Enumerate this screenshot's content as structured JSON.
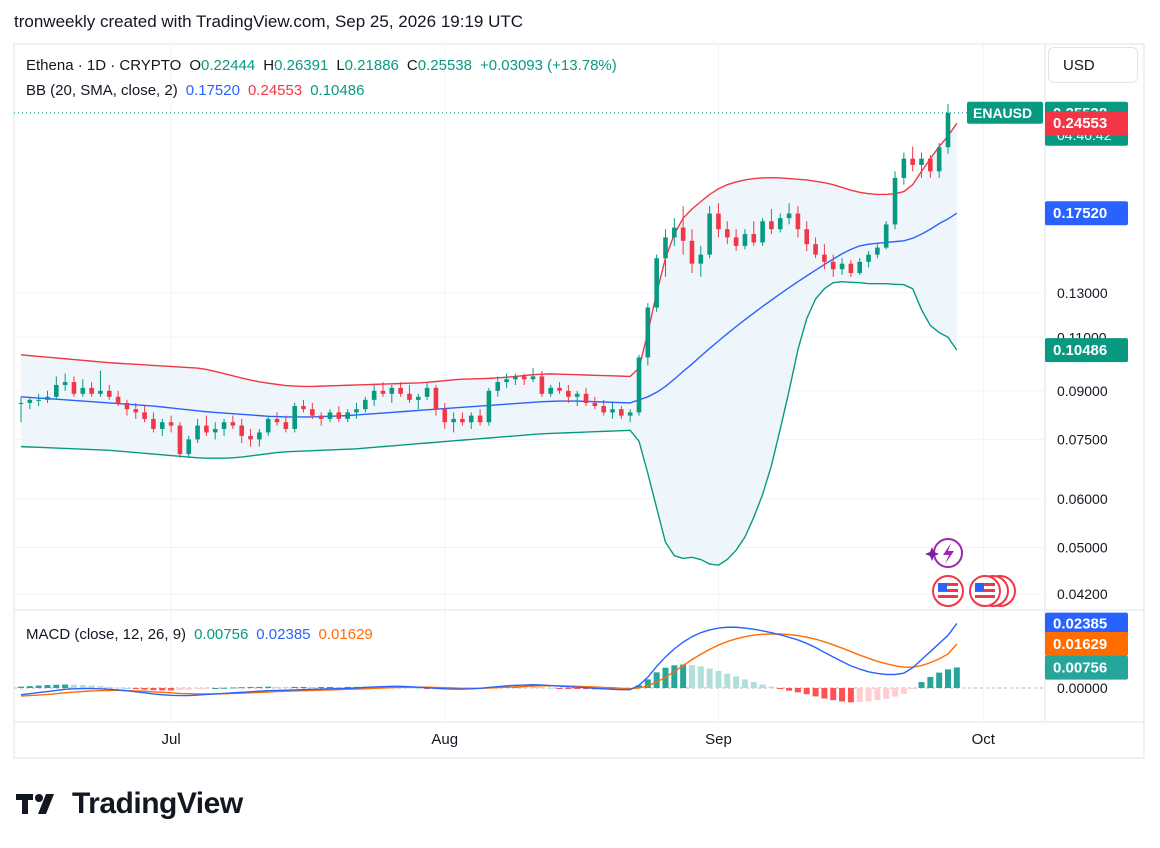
{
  "header": {
    "caption": "tronweekly created with TradingView.com, Sep 25, 2026 19:19 UTC"
  },
  "currency_button": {
    "label": "USD"
  },
  "branding": {
    "name": "TradingView"
  },
  "colors": {
    "up": "#089981",
    "down": "#f23645",
    "bb_upper": "#f23645",
    "bb_basis": "#2962ff",
    "bb_lower": "#089981",
    "bb_fill": "#eef6fc",
    "macd_line": "#2962ff",
    "signal_line": "#ff6d00",
    "hist_up_strong": "#26a69a",
    "hist_up_weak": "#b2dfdb",
    "hist_down_strong": "#ff5252",
    "hist_down_weak": "#ffcdd2",
    "grid": "#f0f3fa",
    "text": "#131722",
    "muted": "#787b86"
  },
  "legend": {
    "symbol": "Ethena · 1D · CRYPTO",
    "o_label": "O",
    "o_value": "0.22444",
    "h_label": "H",
    "h_value": "0.26391",
    "l_label": "L",
    "l_value": "0.21886",
    "c_label": "C",
    "c_value": "0.25538",
    "change": "+0.03093 (+13.78%)",
    "bb_title": "BB (20, SMA, close, 2)",
    "bb_basis": "0.17520",
    "bb_upper": "0.24553",
    "bb_lower": "0.10486",
    "macd_title": "MACD (close, 12, 26, 9)",
    "macd_hist": "0.00756",
    "macd_line": "0.02385",
    "macd_signal": "0.01629"
  },
  "chart_data": {
    "type": "candlestick",
    "symbol": "ENAUSD",
    "scale": "log",
    "price_axis_ticks": [
      "0.13000",
      "0.11000",
      "0.09000",
      "0.07500",
      "0.06000",
      "0.05000",
      "0.04200"
    ],
    "macd_axis_ticks": [
      "0.00000"
    ],
    "time_axis_labels": [
      "Jul",
      "Aug",
      "Sep",
      "Oct"
    ],
    "current_price": {
      "label": "ENAUSD",
      "value": "0.25538",
      "countdown": "04:40:42"
    },
    "bb_tags": {
      "upper": "0.24553",
      "basis": "0.17520",
      "lower": "0.10486"
    },
    "macd_tags": {
      "macd": "0.02385",
      "signal": "0.01629",
      "histogram": "0.00756"
    },
    "candles": [
      [
        0.086,
        0.088,
        0.08,
        0.086
      ],
      [
        0.086,
        0.088,
        0.084,
        0.087
      ],
      [
        0.087,
        0.089,
        0.085,
        0.087
      ],
      [
        0.087,
        0.09,
        0.086,
        0.088
      ],
      [
        0.088,
        0.095,
        0.087,
        0.092
      ],
      [
        0.092,
        0.096,
        0.09,
        0.093
      ],
      [
        0.093,
        0.095,
        0.088,
        0.089
      ],
      [
        0.089,
        0.094,
        0.088,
        0.091
      ],
      [
        0.091,
        0.093,
        0.088,
        0.089
      ],
      [
        0.089,
        0.097,
        0.088,
        0.09
      ],
      [
        0.09,
        0.092,
        0.087,
        0.088
      ],
      [
        0.088,
        0.09,
        0.085,
        0.086
      ],
      [
        0.086,
        0.087,
        0.082,
        0.084
      ],
      [
        0.084,
        0.086,
        0.081,
        0.083
      ],
      [
        0.083,
        0.085,
        0.08,
        0.081
      ],
      [
        0.081,
        0.083,
        0.077,
        0.078
      ],
      [
        0.078,
        0.081,
        0.076,
        0.08
      ],
      [
        0.08,
        0.082,
        0.077,
        0.079
      ],
      [
        0.079,
        0.08,
        0.07,
        0.071
      ],
      [
        0.071,
        0.076,
        0.07,
        0.075
      ],
      [
        0.075,
        0.081,
        0.074,
        0.079
      ],
      [
        0.079,
        0.082,
        0.076,
        0.077
      ],
      [
        0.077,
        0.08,
        0.075,
        0.078
      ],
      [
        0.078,
        0.081,
        0.076,
        0.08
      ],
      [
        0.08,
        0.082,
        0.078,
        0.079
      ],
      [
        0.079,
        0.081,
        0.074,
        0.076
      ],
      [
        0.076,
        0.078,
        0.073,
        0.075
      ],
      [
        0.075,
        0.078,
        0.073,
        0.077
      ],
      [
        0.077,
        0.082,
        0.076,
        0.081
      ],
      [
        0.081,
        0.083,
        0.079,
        0.08
      ],
      [
        0.08,
        0.082,
        0.077,
        0.078
      ],
      [
        0.078,
        0.086,
        0.077,
        0.085
      ],
      [
        0.085,
        0.087,
        0.083,
        0.084
      ],
      [
        0.084,
        0.086,
        0.081,
        0.082
      ],
      [
        0.082,
        0.083,
        0.079,
        0.081
      ],
      [
        0.081,
        0.084,
        0.08,
        0.083
      ],
      [
        0.083,
        0.085,
        0.08,
        0.081
      ],
      [
        0.081,
        0.084,
        0.08,
        0.083
      ],
      [
        0.083,
        0.086,
        0.081,
        0.084
      ],
      [
        0.084,
        0.088,
        0.083,
        0.087
      ],
      [
        0.087,
        0.092,
        0.085,
        0.09
      ],
      [
        0.09,
        0.093,
        0.088,
        0.089
      ],
      [
        0.089,
        0.092,
        0.086,
        0.091
      ],
      [
        0.091,
        0.093,
        0.088,
        0.089
      ],
      [
        0.089,
        0.092,
        0.086,
        0.087
      ],
      [
        0.087,
        0.089,
        0.084,
        0.088
      ],
      [
        0.088,
        0.093,
        0.087,
        0.091
      ],
      [
        0.091,
        0.092,
        0.082,
        0.084
      ],
      [
        0.084,
        0.086,
        0.078,
        0.08
      ],
      [
        0.08,
        0.083,
        0.077,
        0.081
      ],
      [
        0.081,
        0.083,
        0.079,
        0.08
      ],
      [
        0.08,
        0.083,
        0.078,
        0.082
      ],
      [
        0.082,
        0.084,
        0.079,
        0.08
      ],
      [
        0.08,
        0.091,
        0.079,
        0.09
      ],
      [
        0.09,
        0.095,
        0.088,
        0.093
      ],
      [
        0.093,
        0.096,
        0.091,
        0.094
      ],
      [
        0.094,
        0.096,
        0.092,
        0.095
      ],
      [
        0.095,
        0.096,
        0.092,
        0.094
      ],
      [
        0.094,
        0.098,
        0.093,
        0.095
      ],
      [
        0.095,
        0.097,
        0.088,
        0.089
      ],
      [
        0.089,
        0.092,
        0.088,
        0.091
      ],
      [
        0.091,
        0.093,
        0.089,
        0.09
      ],
      [
        0.09,
        0.092,
        0.086,
        0.088
      ],
      [
        0.088,
        0.09,
        0.085,
        0.089
      ],
      [
        0.089,
        0.091,
        0.085,
        0.086
      ],
      [
        0.086,
        0.088,
        0.084,
        0.085
      ],
      [
        0.085,
        0.087,
        0.082,
        0.083
      ],
      [
        0.083,
        0.086,
        0.081,
        0.084
      ],
      [
        0.084,
        0.085,
        0.081,
        0.082
      ],
      [
        0.082,
        0.084,
        0.08,
        0.083
      ],
      [
        0.083,
        0.103,
        0.082,
        0.102
      ],
      [
        0.102,
        0.125,
        0.099,
        0.123
      ],
      [
        0.123,
        0.15,
        0.121,
        0.148
      ],
      [
        0.148,
        0.165,
        0.138,
        0.16
      ],
      [
        0.16,
        0.172,
        0.155,
        0.166
      ],
      [
        0.166,
        0.18,
        0.15,
        0.158
      ],
      [
        0.158,
        0.165,
        0.14,
        0.145
      ],
      [
        0.145,
        0.155,
        0.138,
        0.15
      ],
      [
        0.15,
        0.18,
        0.148,
        0.175
      ],
      [
        0.175,
        0.182,
        0.16,
        0.165
      ],
      [
        0.165,
        0.17,
        0.156,
        0.16
      ],
      [
        0.16,
        0.165,
        0.152,
        0.155
      ],
      [
        0.155,
        0.165,
        0.153,
        0.162
      ],
      [
        0.162,
        0.17,
        0.155,
        0.157
      ],
      [
        0.157,
        0.172,
        0.155,
        0.17
      ],
      [
        0.17,
        0.178,
        0.162,
        0.165
      ],
      [
        0.165,
        0.175,
        0.163,
        0.172
      ],
      [
        0.172,
        0.182,
        0.168,
        0.175
      ],
      [
        0.175,
        0.18,
        0.16,
        0.165
      ],
      [
        0.165,
        0.17,
        0.152,
        0.156
      ],
      [
        0.156,
        0.16,
        0.148,
        0.15
      ],
      [
        0.15,
        0.156,
        0.142,
        0.146
      ],
      [
        0.146,
        0.15,
        0.138,
        0.142
      ],
      [
        0.142,
        0.148,
        0.139,
        0.145
      ],
      [
        0.145,
        0.147,
        0.138,
        0.14
      ],
      [
        0.14,
        0.148,
        0.139,
        0.146
      ],
      [
        0.146,
        0.152,
        0.143,
        0.15
      ],
      [
        0.15,
        0.156,
        0.148,
        0.154
      ],
      [
        0.154,
        0.17,
        0.153,
        0.168
      ],
      [
        0.168,
        0.205,
        0.165,
        0.2
      ],
      [
        0.2,
        0.22,
        0.195,
        0.215
      ],
      [
        0.215,
        0.225,
        0.205,
        0.21
      ],
      [
        0.21,
        0.22,
        0.2,
        0.215
      ],
      [
        0.215,
        0.218,
        0.2,
        0.205
      ],
      [
        0.205,
        0.228,
        0.2,
        0.2244
      ],
      [
        0.22444,
        0.26391,
        0.21886,
        0.25538
      ]
    ],
    "bollinger": {
      "upper": [
        0.103,
        0.1027,
        0.1024,
        0.1021,
        0.1018,
        0.1015,
        0.1012,
        0.1009,
        0.1006,
        0.1003,
        0.1,
        0.0998,
        0.0996,
        0.0994,
        0.0992,
        0.099,
        0.0988,
        0.0986,
        0.0984,
        0.0982,
        0.098,
        0.0975,
        0.0968,
        0.096,
        0.0952,
        0.0944,
        0.0937,
        0.0931,
        0.0926,
        0.0922,
        0.0918,
        0.0916,
        0.0915,
        0.0915,
        0.0916,
        0.0917,
        0.0918,
        0.0919,
        0.092,
        0.0921,
        0.0922,
        0.0923,
        0.0924,
        0.0925,
        0.0926,
        0.0927,
        0.0929,
        0.0932,
        0.0935,
        0.0938,
        0.094,
        0.0941,
        0.0942,
        0.0943,
        0.0945,
        0.0947,
        0.095,
        0.0953,
        0.0956,
        0.0958,
        0.0959,
        0.0958,
        0.0957,
        0.0956,
        0.0955,
        0.0954,
        0.0953,
        0.0952,
        0.0951,
        0.095,
        0.098,
        0.112,
        0.13,
        0.148,
        0.162,
        0.172,
        0.178,
        0.183,
        0.188,
        0.192,
        0.195,
        0.197,
        0.1985,
        0.1995,
        0.2,
        0.2002,
        0.2,
        0.1995,
        0.199,
        0.1985,
        0.1975,
        0.1965,
        0.195,
        0.193,
        0.191,
        0.1895,
        0.1885,
        0.188,
        0.188,
        0.1885,
        0.19,
        0.195,
        0.205,
        0.215,
        0.225,
        0.234,
        0.2455
      ],
      "basis": [
        0.088,
        0.0878,
        0.0876,
        0.0874,
        0.0872,
        0.087,
        0.0868,
        0.0866,
        0.0864,
        0.0862,
        0.086,
        0.0858,
        0.0856,
        0.0854,
        0.0852,
        0.085,
        0.0847,
        0.0844,
        0.0841,
        0.0838,
        0.0835,
        0.0832,
        0.083,
        0.0828,
        0.0826,
        0.0824,
        0.0822,
        0.082,
        0.0818,
        0.0817,
        0.0816,
        0.0816,
        0.0816,
        0.0816,
        0.0817,
        0.0818,
        0.0819,
        0.082,
        0.0822,
        0.0824,
        0.0826,
        0.0828,
        0.083,
        0.0832,
        0.0834,
        0.0836,
        0.0838,
        0.084,
        0.0842,
        0.0844,
        0.0846,
        0.0848,
        0.085,
        0.0852,
        0.0854,
        0.0856,
        0.0858,
        0.086,
        0.0862,
        0.0864,
        0.0865,
        0.0866,
        0.0866,
        0.0866,
        0.0865,
        0.0864,
        0.0863,
        0.0862,
        0.0861,
        0.086,
        0.087,
        0.088,
        0.0895,
        0.0915,
        0.094,
        0.0968,
        0.0995,
        0.1025,
        0.1055,
        0.1085,
        0.1115,
        0.1145,
        0.1175,
        0.1205,
        0.1235,
        0.1265,
        0.1295,
        0.1325,
        0.1355,
        0.1385,
        0.1415,
        0.1445,
        0.1475,
        0.1505,
        0.153,
        0.155,
        0.156,
        0.1565,
        0.157,
        0.1575,
        0.158,
        0.1595,
        0.162,
        0.165,
        0.1685,
        0.1715,
        0.1752
      ],
      "lower": [
        0.073,
        0.0729,
        0.0728,
        0.0727,
        0.0726,
        0.0725,
        0.0724,
        0.0723,
        0.0722,
        0.0721,
        0.072,
        0.0718,
        0.0716,
        0.0714,
        0.0712,
        0.071,
        0.0708,
        0.0706,
        0.0704,
        0.0702,
        0.07,
        0.0699,
        0.0699,
        0.0699,
        0.07,
        0.0702,
        0.0705,
        0.0708,
        0.0711,
        0.0714,
        0.0716,
        0.0717,
        0.0718,
        0.0719,
        0.072,
        0.0721,
        0.0722,
        0.0723,
        0.0724,
        0.0726,
        0.0728,
        0.073,
        0.0732,
        0.0734,
        0.0736,
        0.0738,
        0.074,
        0.0742,
        0.0744,
        0.0746,
        0.0748,
        0.075,
        0.0752,
        0.0754,
        0.0756,
        0.0758,
        0.076,
        0.0762,
        0.0764,
        0.0766,
        0.0767,
        0.0768,
        0.0769,
        0.077,
        0.0771,
        0.0772,
        0.0773,
        0.0774,
        0.0775,
        0.0776,
        0.0745,
        0.066,
        0.058,
        0.051,
        0.0485,
        0.048,
        0.0482,
        0.0478,
        0.047,
        0.0468,
        0.0478,
        0.0495,
        0.052,
        0.056,
        0.061,
        0.068,
        0.078,
        0.09,
        0.105,
        0.118,
        0.127,
        0.132,
        0.135,
        0.1355,
        0.1352,
        0.135,
        0.1345,
        0.1345,
        0.1345,
        0.1342,
        0.134,
        0.132,
        0.122,
        0.115,
        0.112,
        0.11,
        0.1049
      ]
    },
    "macd": {
      "macd_line": [
        -0.0025,
        -0.0021,
        -0.0017,
        -0.0013,
        -0.0009,
        -0.0005,
        -0.0003,
        -0.0002,
        -0.0002,
        -0.0003,
        -0.0005,
        -0.0007,
        -0.001,
        -0.0014,
        -0.0018,
        -0.0022,
        -0.0025,
        -0.0027,
        -0.0028,
        -0.0028,
        -0.0026,
        -0.0024,
        -0.0022,
        -0.002,
        -0.0018,
        -0.0016,
        -0.0014,
        -0.0012,
        -0.001,
        -0.0009,
        -0.0008,
        -0.0007,
        -0.0006,
        -0.0005,
        -0.0004,
        -0.0003,
        -0.0002,
        -0.0001,
        0.0,
        0.0002,
        0.0004,
        0.0005,
        0.0006,
        0.0006,
        0.0005,
        0.0003,
        0.0001,
        -0.0001,
        -0.0003,
        -0.0004,
        -0.0004,
        -0.0003,
        -0.0001,
        0.0002,
        0.0005,
        0.0008,
        0.001,
        0.0011,
        0.0012,
        0.0011,
        0.0009,
        0.0007,
        0.0005,
        0.0003,
        0.0001,
        -0.0001,
        -0.0003,
        -0.0005,
        -0.0006,
        -0.0006,
        0.001,
        0.004,
        0.008,
        0.0115,
        0.0145,
        0.017,
        0.019,
        0.0205,
        0.0215,
        0.0222,
        0.0225,
        0.0225,
        0.0222,
        0.0218,
        0.0212,
        0.0205,
        0.0197,
        0.0188,
        0.0178,
        0.0165,
        0.015,
        0.0132,
        0.0115,
        0.0098,
        0.0082,
        0.007,
        0.006,
        0.0054,
        0.005,
        0.005,
        0.0055,
        0.0075,
        0.0105,
        0.0135,
        0.0165,
        0.0195,
        0.0239
      ],
      "signal_line": [
        -0.003,
        -0.0028,
        -0.0026,
        -0.0024,
        -0.0021,
        -0.0018,
        -0.0015,
        -0.0013,
        -0.0011,
        -0.001,
        -0.0009,
        -0.0009,
        -0.001,
        -0.0011,
        -0.0012,
        -0.0014,
        -0.0016,
        -0.0018,
        -0.002,
        -0.0021,
        -0.0022,
        -0.0022,
        -0.0022,
        -0.0021,
        -0.002,
        -0.0019,
        -0.0018,
        -0.0016,
        -0.0015,
        -0.0013,
        -0.0012,
        -0.0011,
        -0.001,
        -0.0009,
        -0.0008,
        -0.0007,
        -0.0006,
        -0.0005,
        -0.0004,
        -0.0003,
        -0.0001,
        0.0,
        0.0001,
        0.0002,
        0.0003,
        0.0003,
        0.0003,
        0.0002,
        0.0001,
        0.0,
        -0.0001,
        -0.0001,
        -0.0001,
        0.0,
        0.0001,
        0.0003,
        0.0004,
        0.0006,
        0.0007,
        0.0008,
        0.0008,
        0.0008,
        0.0007,
        0.0006,
        0.0005,
        0.0004,
        0.0002,
        0.0001,
        -0.0001,
        -0.0002,
        0.0,
        0.0008,
        0.0022,
        0.004,
        0.0061,
        0.0083,
        0.0105,
        0.0125,
        0.0143,
        0.0159,
        0.0172,
        0.0182,
        0.019,
        0.0196,
        0.0199,
        0.02,
        0.02,
        0.0198,
        0.0194,
        0.0188,
        0.0181,
        0.0171,
        0.016,
        0.0148,
        0.0135,
        0.0122,
        0.011,
        0.0099,
        0.009,
        0.0082,
        0.0077,
        0.0077,
        0.0083,
        0.0094,
        0.0108,
        0.0126,
        0.0163
      ]
    }
  }
}
